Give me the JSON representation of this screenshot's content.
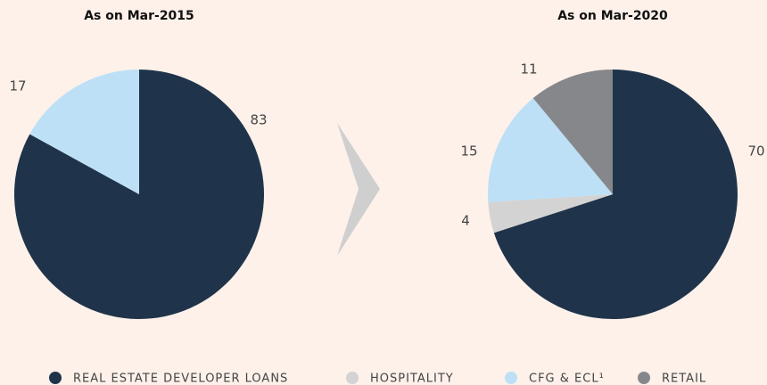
{
  "chart_data": [
    {
      "type": "pie",
      "title": "As on Mar-2015",
      "categories": [
        "REAL ESTATE DEVELOPER LOANS",
        "CFG & ECL¹"
      ],
      "values": [
        83,
        17
      ],
      "colors": [
        "#1f344a",
        "#bde0f6"
      ]
    },
    {
      "type": "pie",
      "title": "As on Mar-2020",
      "categories": [
        "REAL ESTATE DEVELOPER LOANS",
        "HOSPITALITY",
        "CFG & ECL¹",
        "RETAIL"
      ],
      "values": [
        70,
        4,
        15,
        11
      ],
      "colors": [
        "#1f344a",
        "#d3d3d3",
        "#bde0f6",
        "#86878b"
      ]
    }
  ],
  "legend": [
    {
      "name": "REAL ESTATE DEVELOPER LOANS",
      "color": "#1f344a"
    },
    {
      "name": "HOSPITALITY",
      "color": "#d3d3d3"
    },
    {
      "name": "CFG & ECL¹",
      "color": "#bde0f6"
    },
    {
      "name": "RETAIL",
      "color": "#86878b"
    }
  ]
}
